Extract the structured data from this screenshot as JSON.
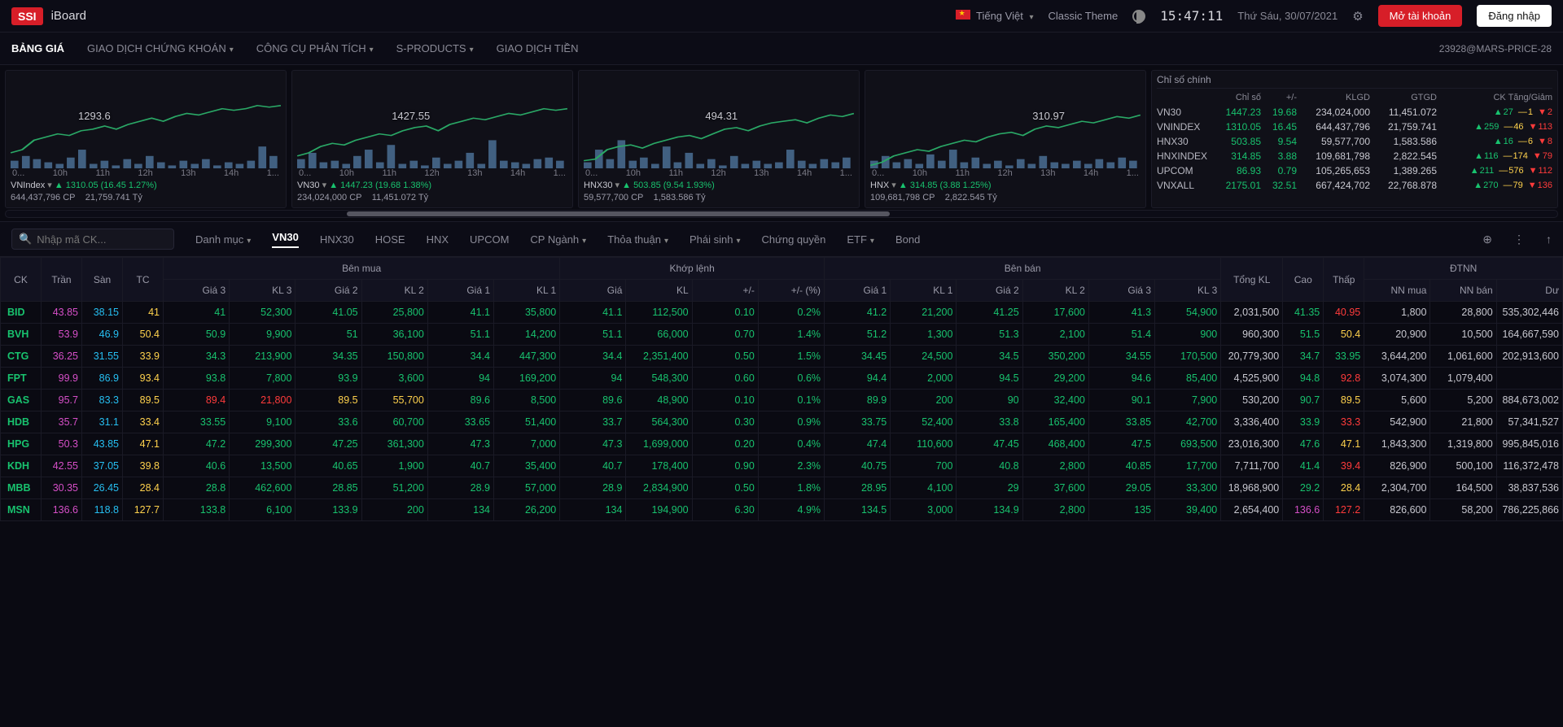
{
  "colors": {
    "bg": "#0a0a12",
    "panel": "#101018",
    "border": "#1c1c28",
    "text": "#c8c8d0",
    "muted": "#8a8a96",
    "green": "#18c26e",
    "red": "#ff3b3b",
    "yellow": "#ffd24d",
    "ceil": "#d64fc8",
    "floor": "#26bff2",
    "brand_red": "#d71e28",
    "chart_line": "#2aa866",
    "chart_bar": "#6aa2d8"
  },
  "topbar": {
    "logo": "SSI",
    "brand": "iBoard",
    "lang": "Tiếng Việt",
    "theme_label": "Classic Theme",
    "clock": "15:47:11",
    "date": "Thứ Sáu, 30/07/2021",
    "btn_open": "Mở tài khoản",
    "btn_login": "Đăng nhập"
  },
  "nav": {
    "items": [
      "BẢNG GIÁ",
      "GIAO DỊCH CHỨNG KHOÁN",
      "CÔNG CỤ PHÂN TÍCH",
      "S-PRODUCTS",
      "GIAO DỊCH TIỀN"
    ],
    "dropdown": [
      false,
      true,
      true,
      true,
      false
    ],
    "active": 0,
    "right": "23928@MARS-PRICE-28"
  },
  "charts": {
    "xlabels": [
      "0...",
      "10h",
      "11h",
      "12h",
      "13h",
      "14h",
      "1..."
    ],
    "panes": [
      {
        "name": "VNIndex",
        "price": "1293.6",
        "foot_sym": "VNIndex",
        "foot_arrow": "▾",
        "foot_line1": "1310.05 (16.45 1.27%)",
        "foot_line2a": "644,437,796 CP",
        "foot_line2b": "21,759.741 Tỷ",
        "line": [
          50,
          48,
          42,
          40,
          38,
          39,
          36,
          35,
          33,
          35,
          32,
          30,
          28,
          30,
          27,
          25,
          26,
          24,
          22,
          23,
          22,
          20,
          21,
          20
        ],
        "bars": [
          5,
          8,
          6,
          4,
          3,
          7,
          12,
          3,
          5,
          2,
          6,
          3,
          8,
          4,
          2,
          5,
          3,
          6,
          2,
          4,
          3,
          5,
          14,
          8
        ],
        "price_left": "25%"
      },
      {
        "name": "VN30",
        "price": "1427.55",
        "foot_sym": "VN30",
        "foot_arrow": "▾",
        "foot_line1": "1447.23 (19.68 1.38%)",
        "foot_line2a": "234,024,000 CP",
        "foot_line2b": "11,451.072 Tỷ",
        "line": [
          52,
          50,
          46,
          44,
          45,
          42,
          40,
          38,
          39,
          36,
          34,
          33,
          36,
          32,
          30,
          28,
          29,
          27,
          25,
          26,
          24,
          22,
          23,
          22
        ],
        "bars": [
          6,
          10,
          4,
          5,
          3,
          8,
          12,
          4,
          15,
          3,
          5,
          2,
          7,
          3,
          5,
          10,
          3,
          18,
          5,
          4,
          3,
          6,
          7,
          5
        ],
        "price_left": "35%"
      },
      {
        "name": "HNX30",
        "price": "494.31",
        "foot_sym": "HNX30",
        "foot_arrow": "▾",
        "foot_line1": "503.85 (9.54 1.93%)",
        "foot_line2a": "59,577,700 CP",
        "foot_line2b": "1,583.586 Tỷ",
        "line": [
          55,
          54,
          48,
          46,
          45,
          47,
          44,
          42,
          40,
          39,
          41,
          38,
          35,
          34,
          36,
          33,
          31,
          30,
          29,
          31,
          28,
          26,
          27,
          25
        ],
        "bars": [
          4,
          12,
          6,
          18,
          5,
          7,
          3,
          14,
          4,
          10,
          3,
          6,
          2,
          8,
          3,
          5,
          3,
          4,
          12,
          5,
          3,
          6,
          4,
          7
        ],
        "price_left": "45%"
      },
      {
        "name": "HNX",
        "price": "310.97",
        "foot_sym": "HNX",
        "foot_arrow": "▾",
        "foot_line1": "314.85 (3.88 1.25%)",
        "foot_line2a": "109,681,798 CP",
        "foot_line2b": "2,822.545 Tỷ",
        "line": [
          58,
          56,
          52,
          50,
          48,
          49,
          46,
          44,
          42,
          43,
          40,
          38,
          37,
          39,
          35,
          33,
          34,
          32,
          30,
          31,
          29,
          27,
          28,
          26
        ],
        "bars": [
          5,
          8,
          4,
          6,
          3,
          9,
          5,
          12,
          4,
          7,
          3,
          5,
          2,
          6,
          3,
          8,
          4,
          3,
          5,
          3,
          6,
          4,
          7,
          5
        ],
        "price_left": "60%"
      }
    ]
  },
  "index_panel": {
    "title": "Chỉ số chính",
    "head": [
      "",
      "Chỉ số",
      "+/-",
      "KLGD",
      "GTGD",
      "CK Tăng/Giảm"
    ],
    "rows": [
      {
        "nm": "VN30",
        "px": "1447.23",
        "chg": "19.68",
        "vol": "234,024,000",
        "val": "11,451.072",
        "up": "27",
        "eq": "1",
        "dn": "2"
      },
      {
        "nm": "VNINDEX",
        "px": "1310.05",
        "chg": "16.45",
        "vol": "644,437,796",
        "val": "21,759.741",
        "up": "259",
        "eq": "46",
        "dn": "113"
      },
      {
        "nm": "HNX30",
        "px": "503.85",
        "chg": "9.54",
        "vol": "59,577,700",
        "val": "1,583.586",
        "up": "16",
        "eq": "6",
        "dn": "8"
      },
      {
        "nm": "HNXINDEX",
        "px": "314.85",
        "chg": "3.88",
        "vol": "109,681,798",
        "val": "2,822.545",
        "up": "116",
        "eq": "174",
        "dn": "79"
      },
      {
        "nm": "UPCOM",
        "px": "86.93",
        "chg": "0.79",
        "vol": "105,265,653",
        "val": "1,389.265",
        "up": "211",
        "eq": "576",
        "dn": "112"
      },
      {
        "nm": "VNXALL",
        "px": "2175.01",
        "chg": "32.51",
        "vol": "667,424,702",
        "val": "22,768.878",
        "up": "270",
        "eq": "79",
        "dn": "136"
      }
    ]
  },
  "filter": {
    "search_placeholder": "Nhập mã CK...",
    "tabs": [
      "Danh mục",
      "VN30",
      "HNX30",
      "HOSE",
      "HNX",
      "UPCOM",
      "CP Ngành",
      "Thỏa thuận",
      "Phái sinh",
      "Chứng quyền",
      "ETF",
      "Bond"
    ],
    "dropdown": [
      true,
      false,
      false,
      false,
      false,
      false,
      true,
      true,
      true,
      false,
      true,
      false
    ],
    "active": 1
  },
  "board": {
    "group_headers": {
      "ck": "CK",
      "tran": "Trần",
      "san": "Sàn",
      "tc": "TC",
      "benmua": "Bên mua",
      "khoplenh": "Khớp lệnh",
      "benban": "Bên bán",
      "tongkl": "Tổng KL",
      "cao": "Cao",
      "thap": "Thấp",
      "dtnn": "ĐTNN"
    },
    "sub_headers": {
      "gia3": "Giá 3",
      "kl3": "KL 3",
      "gia2": "Giá 2",
      "kl2": "KL 2",
      "gia1": "Giá 1",
      "kl1": "KL 1",
      "gia": "Giá",
      "kl": "KL",
      "chg": "+/-",
      "pct": "+/- (%)",
      "sg1": "Giá 1",
      "sk1": "KL 1",
      "sg2": "Giá 2",
      "sk2": "KL 2",
      "sg3": "Giá 3",
      "sk3": "KL 3",
      "nnmua": "NN mua",
      "nnban": "NN bán",
      "du": "Dư"
    },
    "rows": [
      {
        "sym": "BID",
        "ceil": "43.85",
        "floor": "38.15",
        "ref": "41",
        "b": [
          "41",
          "52,300",
          "41.05",
          "25,800",
          "41.1",
          "35,800"
        ],
        "m": [
          "41.1",
          "112,500",
          "0.10",
          "0.2%"
        ],
        "s": [
          "41.2",
          "21,200",
          "41.25",
          "17,600",
          "41.3",
          "54,900"
        ],
        "tot": "2,031,500",
        "hi": "41.35",
        "lo": "40.95",
        "loCls": "c-red",
        "fn": [
          "1,800",
          "28,800",
          "535,302,446"
        ]
      },
      {
        "sym": "BVH",
        "ceil": "53.9",
        "floor": "46.9",
        "ref": "50.4",
        "b": [
          "50.9",
          "9,900",
          "51",
          "36,100",
          "51.1",
          "14,200"
        ],
        "m": [
          "51.1",
          "66,000",
          "0.70",
          "1.4%"
        ],
        "s": [
          "51.2",
          "1,300",
          "51.3",
          "2,100",
          "51.4",
          "900"
        ],
        "tot": "960,300",
        "hi": "51.5",
        "lo": "50.4",
        "loCls": "c-yel",
        "fn": [
          "20,900",
          "10,500",
          "164,667,590"
        ]
      },
      {
        "sym": "CTG",
        "ceil": "36.25",
        "floor": "31.55",
        "ref": "33.9",
        "b": [
          "34.3",
          "213,900",
          "34.35",
          "150,800",
          "34.4",
          "447,300"
        ],
        "m": [
          "34.4",
          "2,351,400",
          "0.50",
          "1.5%"
        ],
        "s": [
          "34.45",
          "24,500",
          "34.5",
          "350,200",
          "34.55",
          "170,500"
        ],
        "tot": "20,779,300",
        "hi": "34.7",
        "lo": "33.95",
        "loCls": "c-grn",
        "fn": [
          "3,644,200",
          "1,061,600",
          "202,913,600"
        ]
      },
      {
        "sym": "FPT",
        "ceil": "99.9",
        "floor": "86.9",
        "ref": "93.4",
        "b": [
          "93.8",
          "7,800",
          "93.9",
          "3,600",
          "94",
          "169,200"
        ],
        "m": [
          "94",
          "548,300",
          "0.60",
          "0.6%"
        ],
        "s": [
          "94.4",
          "2,000",
          "94.5",
          "29,200",
          "94.6",
          "85,400"
        ],
        "tot": "4,525,900",
        "hi": "94.8",
        "lo": "92.8",
        "loCls": "c-red",
        "fn": [
          "3,074,300",
          "1,079,400",
          ""
        ]
      },
      {
        "sym": "GAS",
        "ceil": "95.7",
        "floor": "83.3",
        "ref": "89.5",
        "b": [
          "89.4",
          "21,800",
          "89.5",
          "55,700",
          "89.6",
          "8,500"
        ],
        "bCls": [
          "c-red",
          "c-red",
          "c-yel",
          "c-yel",
          "c-grn",
          "c-grn"
        ],
        "m": [
          "89.6",
          "48,900",
          "0.10",
          "0.1%"
        ],
        "s": [
          "89.9",
          "200",
          "90",
          "32,400",
          "90.1",
          "7,900"
        ],
        "tot": "530,200",
        "hi": "90.7",
        "lo": "89.5",
        "loCls": "c-yel",
        "fn": [
          "5,600",
          "5,200",
          "884,673,002"
        ]
      },
      {
        "sym": "HDB",
        "ceil": "35.7",
        "floor": "31.1",
        "ref": "33.4",
        "b": [
          "33.55",
          "9,100",
          "33.6",
          "60,700",
          "33.65",
          "51,400"
        ],
        "m": [
          "33.7",
          "564,300",
          "0.30",
          "0.9%"
        ],
        "s": [
          "33.75",
          "52,400",
          "33.8",
          "165,400",
          "33.85",
          "42,700"
        ],
        "tot": "3,336,400",
        "hi": "33.9",
        "lo": "33.3",
        "loCls": "c-red",
        "fn": [
          "542,900",
          "21,800",
          "57,341,527"
        ]
      },
      {
        "sym": "HPG",
        "ceil": "50.3",
        "floor": "43.85",
        "ref": "47.1",
        "b": [
          "47.2",
          "299,300",
          "47.25",
          "361,300",
          "47.3",
          "7,000"
        ],
        "m": [
          "47.3",
          "1,699,000",
          "0.20",
          "0.4%"
        ],
        "s": [
          "47.4",
          "110,600",
          "47.45",
          "468,400",
          "47.5",
          "693,500"
        ],
        "tot": "23,016,300",
        "hi": "47.6",
        "lo": "47.1",
        "loCls": "c-yel",
        "fn": [
          "1,843,300",
          "1,319,800",
          "995,845,016"
        ]
      },
      {
        "sym": "KDH",
        "ceil": "42.55",
        "floor": "37.05",
        "ref": "39.8",
        "b": [
          "40.6",
          "13,500",
          "40.65",
          "1,900",
          "40.7",
          "35,400"
        ],
        "m": [
          "40.7",
          "178,400",
          "0.90",
          "2.3%"
        ],
        "s": [
          "40.75",
          "700",
          "40.8",
          "2,800",
          "40.85",
          "17,700"
        ],
        "tot": "7,711,700",
        "hi": "41.4",
        "lo": "39.4",
        "loCls": "c-red",
        "fn": [
          "826,900",
          "500,100",
          "116,372,478"
        ]
      },
      {
        "sym": "MBB",
        "ceil": "30.35",
        "floor": "26.45",
        "ref": "28.4",
        "b": [
          "28.8",
          "462,600",
          "28.85",
          "51,200",
          "28.9",
          "57,000"
        ],
        "m": [
          "28.9",
          "2,834,900",
          "0.50",
          "1.8%"
        ],
        "s": [
          "28.95",
          "4,100",
          "29",
          "37,600",
          "29.05",
          "33,300"
        ],
        "tot": "18,968,900",
        "hi": "29.2",
        "lo": "28.4",
        "loCls": "c-yel",
        "fn": [
          "2,304,700",
          "164,500",
          "38,837,536"
        ]
      },
      {
        "sym": "MSN",
        "ceil": "136.6",
        "floor": "118.8",
        "ref": "127.7",
        "b": [
          "133.8",
          "6,100",
          "133.9",
          "200",
          "134",
          "26,200"
        ],
        "m": [
          "134",
          "194,900",
          "6.30",
          "4.9%"
        ],
        "s": [
          "134.5",
          "3,000",
          "134.9",
          "2,800",
          "135",
          "39,400"
        ],
        "tot": "2,654,400",
        "hi": "136.6",
        "hiCls": "c-ceil",
        "lo": "127.2",
        "loCls": "c-red",
        "fn": [
          "826,600",
          "58,200",
          "786,225,866"
        ]
      }
    ]
  }
}
